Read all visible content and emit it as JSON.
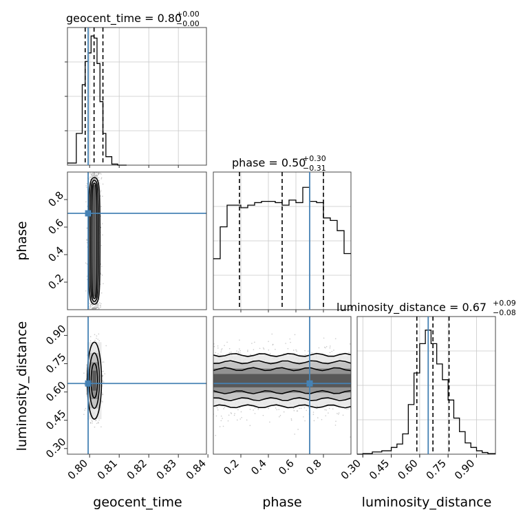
{
  "chart_data": {
    "type": "corner",
    "parameters": [
      "geocent_time",
      "phase",
      "luminosity_distance"
    ],
    "truths": {
      "geocent_time": 0.7995,
      "phase": 0.7,
      "luminosity_distance": 0.645
    },
    "titles": [
      {
        "param": "geocent_time",
        "main": "geocent_time = 0.80",
        "plus": "+0.00",
        "minus": "−0.00"
      },
      {
        "param": "phase",
        "main": "phase = 0.50",
        "plus": "+0.30",
        "minus": "−0.31"
      },
      {
        "param": "luminosity_distance",
        "main": "luminosity_distance = 0.67",
        "plus": "+0.09",
        "minus": "−0.08"
      }
    ],
    "axis_labels": {
      "x": [
        "geocent_time",
        "phase",
        "luminosity_distance"
      ],
      "y": [
        "phase",
        "luminosity_distance"
      ]
    },
    "ticks": {
      "geocent_time": {
        "range": [
          0.7925,
          0.8395
        ],
        "values": [
          0.8,
          0.81,
          0.82,
          0.83,
          0.84
        ],
        "labels": [
          "0.80",
          "0.81",
          "0.82",
          "0.83",
          "0.84"
        ]
      },
      "phase": {
        "range": [
          0.0,
          1.0
        ],
        "values": [
          0.2,
          0.4,
          0.6,
          0.8
        ],
        "labels": [
          "0.2",
          "0.4",
          "0.6",
          "0.8"
        ]
      },
      "luminosity_distance": {
        "range": [
          0.27,
          1.0
        ],
        "values": [
          0.3,
          0.45,
          0.6,
          0.75,
          0.9
        ],
        "labels": [
          "0.30",
          "0.45",
          "0.60",
          "0.75",
          "0.90"
        ]
      }
    },
    "histograms": {
      "geocent_time": {
        "edges": [
          0.7925,
          0.7955,
          0.7975,
          0.7985,
          0.7995,
          0.8005,
          0.8015,
          0.8025,
          0.8035,
          0.8045,
          0.8055,
          0.8075,
          0.8095,
          0.8125
        ],
        "counts": [
          0.02,
          0.3,
          0.76,
          0.98,
          1.06,
          1.22,
          1.2,
          0.96,
          0.6,
          0.3,
          0.08,
          0.01,
          0.0
        ],
        "quantiles": [
          0.7985,
          0.8015,
          0.8045
        ],
        "ylim": [
          0,
          1.3
        ]
      },
      "phase": {
        "edges": [
          0.0,
          0.05,
          0.1,
          0.15,
          0.2,
          0.25,
          0.3,
          0.35,
          0.4,
          0.45,
          0.5,
          0.55,
          0.6,
          0.65,
          0.7,
          0.75,
          0.8,
          0.85,
          0.9,
          0.95,
          1.0
        ],
        "counts": [
          0.4,
          0.65,
          0.82,
          0.82,
          0.8,
          0.82,
          0.84,
          0.85,
          0.85,
          0.84,
          0.82,
          0.86,
          0.84,
          0.96,
          0.85,
          0.84,
          0.72,
          0.7,
          0.62,
          0.44
        ],
        "quantiles": [
          0.19,
          0.5,
          0.8
        ],
        "ylim": [
          0,
          1.08
        ]
      },
      "luminosity_distance": {
        "edges": [
          0.27,
          0.3,
          0.35,
          0.4,
          0.45,
          0.48,
          0.51,
          0.54,
          0.57,
          0.6,
          0.63,
          0.66,
          0.69,
          0.72,
          0.75,
          0.78,
          0.81,
          0.84,
          0.87,
          0.9,
          0.93,
          0.96,
          1.0
        ],
        "counts": [
          0.0,
          0.005,
          0.02,
          0.03,
          0.06,
          0.09,
          0.18,
          0.44,
          0.72,
          0.98,
          1.1,
          0.98,
          0.8,
          0.66,
          0.48,
          0.32,
          0.2,
          0.1,
          0.06,
          0.03,
          0.015,
          0.005
        ],
        "quantiles": [
          0.585,
          0.67,
          0.755
        ],
        "ylim": [
          0,
          1.22
        ]
      }
    },
    "joint": [
      {
        "x": "geocent_time",
        "y": "phase",
        "cx": 0.8016,
        "cy": 0.5,
        "sx": 0.001,
        "sy": 0.28,
        "shape": "band"
      },
      {
        "x": "geocent_time",
        "y": "luminosity_distance",
        "cx": 0.8016,
        "cy": 0.66,
        "sx": 0.0011,
        "sy": 0.085,
        "shape": "gaussian"
      },
      {
        "x": "phase",
        "y": "luminosity_distance",
        "cx": 0.5,
        "cy": 0.66,
        "sx": 0.29,
        "sy": 0.085,
        "shape": "band"
      }
    ],
    "truth_color": "#4682b4",
    "grid": true
  }
}
